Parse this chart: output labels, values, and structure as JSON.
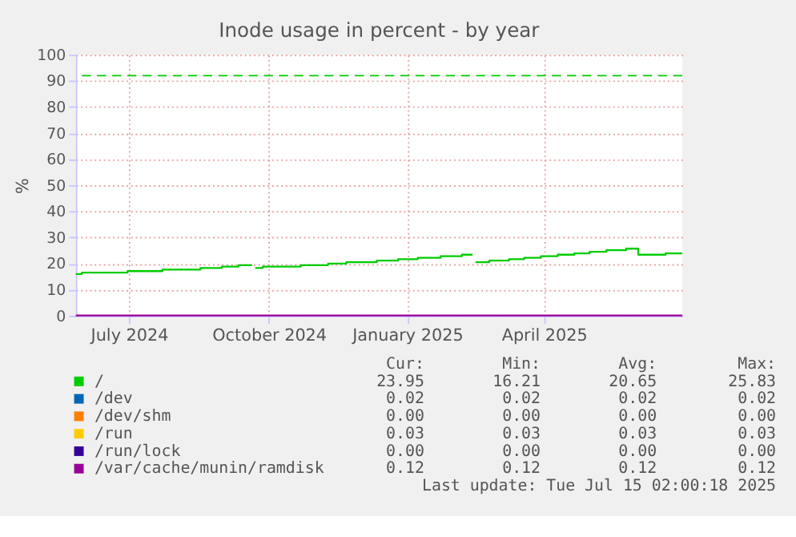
{
  "chart_data": {
    "type": "step",
    "title": "Inode usage in percent - by year",
    "ylabel": "%",
    "xlim": [
      "2024-06-11",
      "2025-07-15"
    ],
    "xticks": [
      {
        "value": "2024-07-16",
        "label": "July 2024"
      },
      {
        "value": "2024-10-16",
        "label": "October 2024"
      },
      {
        "value": "2025-01-15",
        "label": "January 2025"
      },
      {
        "value": "2025-04-15",
        "label": "April 2025"
      }
    ],
    "ylim": [
      0,
      100
    ],
    "yticks": [
      0,
      10,
      20,
      30,
      40,
      50,
      60,
      70,
      80,
      90,
      100
    ],
    "grid": true,
    "legend": "bottom",
    "ref_lines": [
      {
        "axis": "y",
        "value": 92,
        "label": null,
        "color": "#00cc00",
        "line_style": "dashed"
      }
    ],
    "series": [
      {
        "name": "/",
        "color": "#00cc00",
        "x": [
          "2024-06-11",
          "2024-06-15",
          "2024-07-15",
          "2024-08-07",
          "2024-09-01",
          "2024-09-15",
          "2024-09-26",
          "2024-10-05",
          "2024-10-06",
          "2024-10-07",
          "2024-10-12",
          "2024-11-06",
          "2024-11-24",
          "2024-12-06",
          "2024-12-26",
          "2025-01-09",
          "2025-01-22",
          "2025-02-06",
          "2025-02-20",
          "2025-02-27",
          "2025-02-28",
          "2025-03-01",
          "2025-03-10",
          "2025-03-23",
          "2025-04-02",
          "2025-04-13",
          "2025-04-24",
          "2025-05-05",
          "2025-05-15",
          "2025-05-26",
          "2025-06-08",
          "2025-06-16",
          "2025-07-04",
          "2025-07-15"
        ],
        "values": [
          16.0,
          16.5,
          17.1,
          17.7,
          18.3,
          18.8,
          19.4,
          19.4,
          null,
          18.3,
          18.8,
          19.4,
          20.0,
          20.5,
          21.1,
          21.7,
          22.2,
          22.8,
          23.4,
          23.4,
          null,
          20.5,
          21.1,
          21.7,
          22.2,
          22.8,
          23.4,
          23.9,
          24.5,
          25.1,
          25.7,
          23.4,
          23.9,
          23.9
        ]
      },
      {
        "name": "/dev",
        "color": "#0066b3"
      },
      {
        "name": "/dev/shm",
        "color": "#ff8000"
      },
      {
        "name": "/run",
        "color": "#ffcc00"
      },
      {
        "name": "/run/lock",
        "color": "#330099"
      },
      {
        "name": "/var/cache/munin/ramdisk",
        "color": "#990099",
        "x": [
          "2024-06-11",
          "2025-07-15"
        ],
        "values": [
          0.12,
          0.12
        ]
      }
    ],
    "annotations": [
      "Cur:",
      "Min:",
      "Avg:",
      "Max:",
      "23.95",
      "16.21",
      "20.65",
      "25.83",
      "0.02",
      "0.02",
      "0.02",
      "0.02",
      "0.00",
      "0.00",
      "0.00",
      "0.00",
      "0.03",
      "0.03",
      "0.03",
      "0.03",
      "0.00",
      "0.00",
      "0.00",
      "0.00",
      "0.12",
      "0.12",
      "0.12",
      "0.12",
      "Last update: Tue Jul 15 02:00:18 2025"
    ]
  }
}
